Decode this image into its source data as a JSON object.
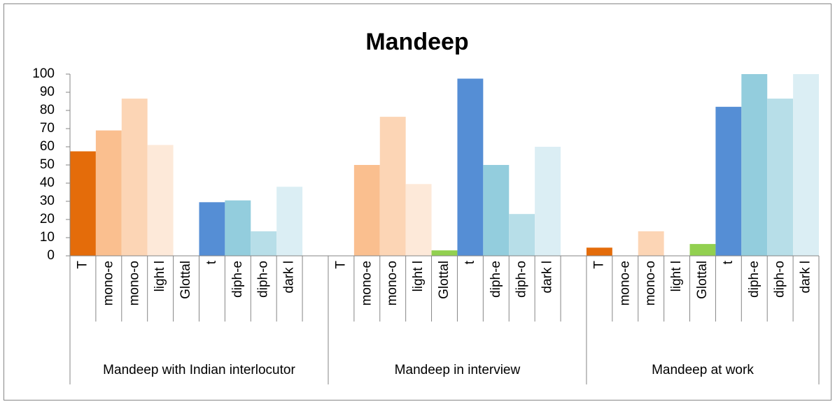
{
  "chart_data": {
    "type": "bar",
    "title": "Mandeep",
    "ylim": [
      0,
      100
    ],
    "yticks": [
      0,
      10,
      20,
      30,
      40,
      50,
      60,
      70,
      80,
      90,
      100
    ],
    "groups": [
      {
        "name": "Mandeep with Indian interlocutor",
        "categories": [
          "T",
          "mono-e",
          "mono-o",
          "light l",
          "Glottal",
          "t",
          "diph-e",
          "diph-o",
          "dark l",
          null
        ],
        "values": [
          57.5,
          69,
          86.5,
          61,
          0,
          29.5,
          30.5,
          13.5,
          38,
          null
        ],
        "colors": [
          "#e46c0a",
          "#fabf8f",
          "#fcd5b5",
          "#fde9d9",
          "#92d050",
          "#558ed5",
          "#93cddd",
          "#b7dee8",
          "#dbeef4",
          null
        ]
      },
      {
        "name": "Mandeep in interview",
        "categories": [
          "T",
          "mono-e",
          "mono-o",
          "light l",
          "Glottal",
          "t",
          "diph-e",
          "diph-o",
          "dark l",
          null
        ],
        "values": [
          0,
          50,
          76.5,
          39.5,
          3,
          97.5,
          50,
          23,
          60,
          null
        ],
        "colors": [
          "#e46c0a",
          "#fabf8f",
          "#fcd5b5",
          "#fde9d9",
          "#92d050",
          "#558ed5",
          "#93cddd",
          "#b7dee8",
          "#dbeef4",
          null
        ]
      },
      {
        "name": "Mandeep at work",
        "categories": [
          "T",
          "mono-e",
          "mono-o",
          "light l",
          "Glottal",
          "t",
          "diph-e",
          "diph-o",
          "dark l"
        ],
        "values": [
          4.5,
          0,
          13.5,
          0,
          6.5,
          82,
          100,
          86.5,
          100
        ],
        "colors": [
          "#e46c0a",
          "#fabf8f",
          "#fcd5b5",
          "#fde9d9",
          "#92d050",
          "#558ed5",
          "#93cddd",
          "#b7dee8",
          "#dbeef4"
        ]
      }
    ]
  }
}
